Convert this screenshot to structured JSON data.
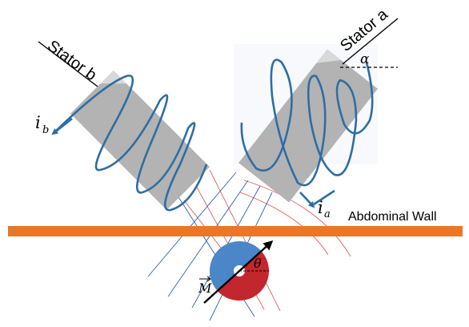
{
  "labels": {
    "stator_b": "Stator b",
    "stator_a": "Stator a",
    "current_b_main": "i",
    "current_b_sub": "b",
    "current_a_main": "i",
    "current_a_sub": "a",
    "angle_alpha": "α",
    "angle_theta": "θ",
    "magnet_moment": "M",
    "wall": "Abdominal Wall"
  },
  "colors": {
    "stator_body": "#b3b3b3",
    "coil": "#2e6da4",
    "wall": "#e8772a",
    "magnet_north": "#4a86c8",
    "magnet_south": "#c1272d",
    "field_line_red": "#e0605a",
    "field_line_blue": "#2e5fa8"
  }
}
